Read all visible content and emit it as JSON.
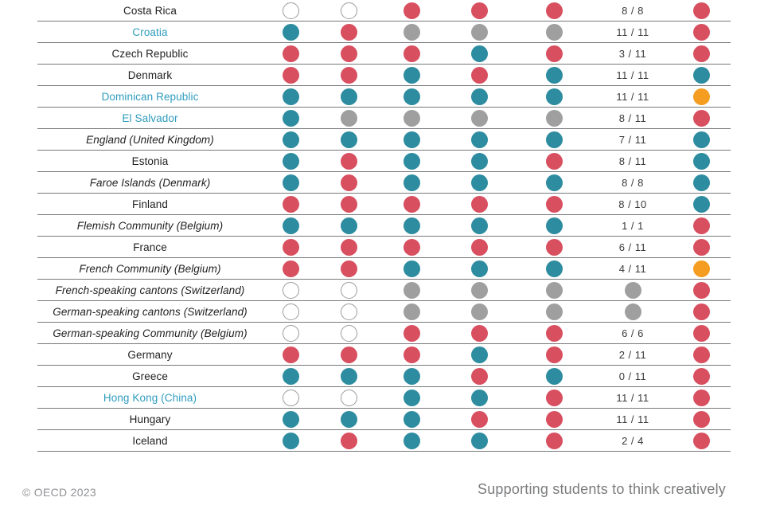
{
  "colors": {
    "teal": "#2d8c9f",
    "red": "#d84f60",
    "gray": "#9f9fa0",
    "orange": "#f49d20",
    "empty_fill": "#ffffff",
    "empty_border": "#9b9b9b",
    "link_text": "#2f9cbd",
    "row_line": "#77787b"
  },
  "footer": {
    "copyright": "© OECD 2023",
    "tagline": "Supporting students to think creatively"
  },
  "chart_data": {
    "type": "table",
    "columns": [
      "country",
      "dot-1",
      "dot-2",
      "dot-3",
      "dot-4",
      "dot-5",
      "ratio",
      "dot-6"
    ],
    "rows": [
      {
        "label": "Costa Rica",
        "link": false,
        "italic": false,
        "dots": [
          "empty",
          "empty",
          "red",
          "red",
          "red"
        ],
        "ratio": "8 / 8",
        "ratio_dot": null,
        "final": "red"
      },
      {
        "label": "Croatia",
        "link": true,
        "italic": false,
        "dots": [
          "teal",
          "red",
          "gray",
          "gray",
          "gray"
        ],
        "ratio": "11 / 11",
        "ratio_dot": null,
        "final": "red"
      },
      {
        "label": "Czech Republic",
        "link": false,
        "italic": false,
        "dots": [
          "red",
          "red",
          "red",
          "teal",
          "red"
        ],
        "ratio": "3 / 11",
        "ratio_dot": null,
        "final": "red"
      },
      {
        "label": "Denmark",
        "link": false,
        "italic": false,
        "dots": [
          "red",
          "red",
          "teal",
          "red",
          "teal"
        ],
        "ratio": "11 / 11",
        "ratio_dot": null,
        "final": "teal"
      },
      {
        "label": "Dominican Republic",
        "link": true,
        "italic": false,
        "dots": [
          "teal",
          "teal",
          "teal",
          "teal",
          "teal"
        ],
        "ratio": "11 / 11",
        "ratio_dot": null,
        "final": "orange"
      },
      {
        "label": "El Salvador",
        "link": true,
        "italic": false,
        "dots": [
          "teal",
          "gray",
          "gray",
          "gray",
          "gray"
        ],
        "ratio": "8 / 11",
        "ratio_dot": null,
        "final": "red"
      },
      {
        "label": "England (United Kingdom)",
        "link": false,
        "italic": true,
        "dots": [
          "teal",
          "teal",
          "teal",
          "teal",
          "teal"
        ],
        "ratio": "7 / 11",
        "ratio_dot": null,
        "final": "teal"
      },
      {
        "label": "Estonia",
        "link": false,
        "italic": false,
        "dots": [
          "teal",
          "red",
          "teal",
          "teal",
          "red"
        ],
        "ratio": "8 / 11",
        "ratio_dot": null,
        "final": "teal"
      },
      {
        "label": "Faroe Islands (Denmark)",
        "link": false,
        "italic": true,
        "dots": [
          "teal",
          "red",
          "teal",
          "teal",
          "teal"
        ],
        "ratio": "8 / 8",
        "ratio_dot": null,
        "final": "teal"
      },
      {
        "label": "Finland",
        "link": false,
        "italic": false,
        "dots": [
          "red",
          "red",
          "red",
          "red",
          "red"
        ],
        "ratio": "8 / 10",
        "ratio_dot": null,
        "final": "teal"
      },
      {
        "label": "Flemish Community (Belgium)",
        "link": false,
        "italic": true,
        "dots": [
          "teal",
          "teal",
          "teal",
          "teal",
          "teal"
        ],
        "ratio": "1 / 1",
        "ratio_dot": null,
        "final": "red"
      },
      {
        "label": "France",
        "link": false,
        "italic": false,
        "dots": [
          "red",
          "red",
          "red",
          "red",
          "red"
        ],
        "ratio": "6 / 11",
        "ratio_dot": null,
        "final": "red"
      },
      {
        "label": "French Community (Belgium)",
        "link": false,
        "italic": true,
        "dots": [
          "red",
          "red",
          "teal",
          "teal",
          "teal"
        ],
        "ratio": "4 / 11",
        "ratio_dot": null,
        "final": "orange"
      },
      {
        "label": "French-speaking cantons (Switzerland)",
        "link": false,
        "italic": true,
        "dots": [
          "empty",
          "empty",
          "gray",
          "gray",
          "gray"
        ],
        "ratio": null,
        "ratio_dot": "gray",
        "final": "red"
      },
      {
        "label": "German-speaking cantons (Switzerland)",
        "link": false,
        "italic": true,
        "dots": [
          "empty",
          "empty",
          "gray",
          "gray",
          "gray"
        ],
        "ratio": null,
        "ratio_dot": "gray",
        "final": "red"
      },
      {
        "label": "German-speaking Community (Belgium)",
        "link": false,
        "italic": true,
        "dots": [
          "empty",
          "empty",
          "red",
          "red",
          "red"
        ],
        "ratio": "6 / 6",
        "ratio_dot": null,
        "final": "red"
      },
      {
        "label": "Germany",
        "link": false,
        "italic": false,
        "dots": [
          "red",
          "red",
          "red",
          "teal",
          "red"
        ],
        "ratio": "2 / 11",
        "ratio_dot": null,
        "final": "red"
      },
      {
        "label": "Greece",
        "link": false,
        "italic": false,
        "dots": [
          "teal",
          "teal",
          "teal",
          "red",
          "teal"
        ],
        "ratio": "0 / 11",
        "ratio_dot": null,
        "final": "red"
      },
      {
        "label": "Hong Kong (China)",
        "link": true,
        "italic": false,
        "dots": [
          "empty",
          "empty",
          "teal",
          "teal",
          "red"
        ],
        "ratio": "11 / 11",
        "ratio_dot": null,
        "final": "red"
      },
      {
        "label": "Hungary",
        "link": false,
        "italic": false,
        "dots": [
          "teal",
          "teal",
          "teal",
          "red",
          "red"
        ],
        "ratio": "11 / 11",
        "ratio_dot": null,
        "final": "red"
      },
      {
        "label": "Iceland",
        "link": false,
        "italic": false,
        "dots": [
          "teal",
          "red",
          "teal",
          "teal",
          "red"
        ],
        "ratio": "2 / 4",
        "ratio_dot": null,
        "final": "red"
      }
    ]
  }
}
